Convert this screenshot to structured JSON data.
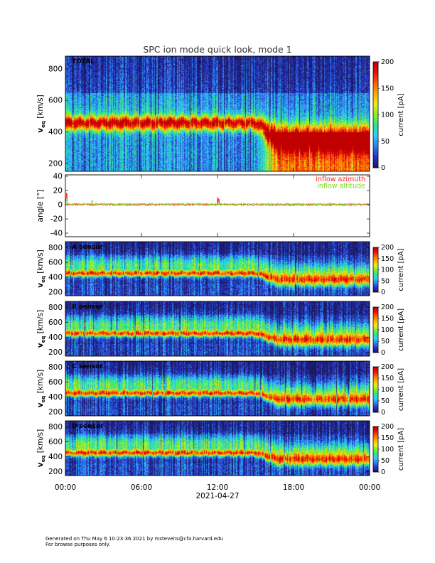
{
  "footer": {
    "generated": "Generated on Thu May  6 10:23:36 2021 by mstevens@cfa.harvard.edu",
    "note": "For browse purposes only."
  },
  "chart_data": [
    {
      "type": "heatmap",
      "title": "SPC ion mode quick look, mode 1",
      "panel_label": "TOTAL",
      "ylabel": "v",
      "ylabel_sub": "eq",
      "ylabel_unit": "[km/s]",
      "ylim": [
        150,
        880
      ],
      "yticks": [
        200,
        400,
        600,
        800
      ],
      "colorbar": {
        "label": "current [pA]",
        "range": [
          0,
          200
        ],
        "ticks": [
          0,
          50,
          100,
          150,
          200
        ]
      }
    },
    {
      "type": "line",
      "ylabel": "angle [°]",
      "ylim": [
        -45,
        42
      ],
      "yticks": [
        -40,
        -20,
        0,
        20,
        40
      ],
      "series": [
        {
          "name": "inflow azimuth",
          "color": "#ff2020",
          "base": 0,
          "spikes": [
            [
              0.1,
              16
            ],
            [
              12.0,
              11
            ],
            [
              12.1,
              8
            ]
          ]
        },
        {
          "name": "inflow altitude",
          "color": "#7ddc1f",
          "base": 1,
          "spikes": [
            [
              0.1,
              8
            ],
            [
              2.1,
              6
            ],
            [
              12.0,
              4
            ]
          ]
        }
      ]
    },
    {
      "type": "heatmap",
      "panel_label": "A sensor",
      "ylabel": "v",
      "ylabel_sub": "eq",
      "ylabel_unit": "[km/s]",
      "ylim": [
        150,
        880
      ],
      "yticks": [
        200,
        400,
        600,
        800
      ],
      "colorbar": {
        "label": "current [pA]",
        "range": [
          0,
          200
        ],
        "ticks": [
          0,
          50,
          100,
          150,
          200
        ]
      }
    },
    {
      "type": "heatmap",
      "panel_label": "B sensor",
      "ylabel": "v",
      "ylabel_sub": "eq",
      "ylabel_unit": "[km/s]",
      "ylim": [
        150,
        880
      ],
      "yticks": [
        200,
        400,
        600,
        800
      ],
      "colorbar": {
        "label": "current [pA]",
        "range": [
          0,
          200
        ],
        "ticks": [
          0,
          50,
          100,
          150,
          200
        ]
      }
    },
    {
      "type": "heatmap",
      "panel_label": "C sensor",
      "ylabel": "v",
      "ylabel_sub": "eq",
      "ylabel_unit": "[km/s]",
      "ylim": [
        150,
        880
      ],
      "yticks": [
        200,
        400,
        600,
        800
      ],
      "colorbar": {
        "label": "current [pA]",
        "range": [
          0,
          200
        ],
        "ticks": [
          0,
          50,
          100,
          150,
          200
        ]
      }
    },
    {
      "type": "heatmap",
      "panel_label": "D sensor",
      "ylabel": "v",
      "ylabel_sub": "eq",
      "ylabel_unit": "[km/s]",
      "ylim": [
        150,
        880
      ],
      "yticks": [
        200,
        400,
        600,
        800
      ],
      "colorbar": {
        "label": "current [pA]",
        "range": [
          0,
          200
        ],
        "ticks": [
          0,
          50,
          100,
          150,
          200
        ]
      }
    }
  ],
  "xaxis": {
    "xlim_hours": [
      0,
      24
    ],
    "tick_hours": [
      0,
      6,
      12,
      18,
      24
    ],
    "tick_labels": [
      "00:00",
      "06:00",
      "12:00",
      "18:00",
      "00:00"
    ],
    "date_label": "2021-04-27"
  },
  "colormap_stops": [
    "#1a1a60",
    "#2b2fd0",
    "#2f7ff0",
    "#2dd0ff",
    "#27e88a",
    "#86f02a",
    "#eeee14",
    "#ffb000",
    "#ff6000",
    "#ee1010",
    "#c00000"
  ]
}
